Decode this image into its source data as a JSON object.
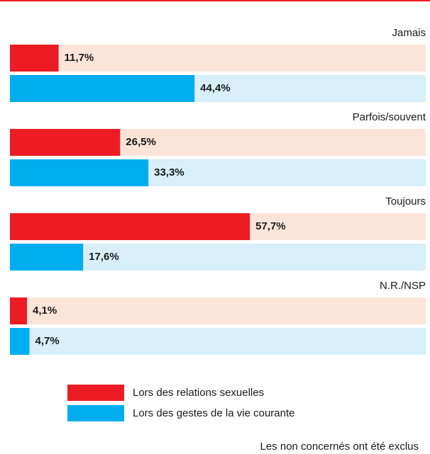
{
  "chart_data": {
    "type": "hbar",
    "categories": [
      "Jamais",
      "Parfois/souvent",
      "Toujours",
      "N.R./NSP"
    ],
    "series": [
      {
        "name": "Lors des relations sexuelles",
        "color": "#ed1c24",
        "values": [
          11.7,
          26.5,
          57.7,
          4.1
        ],
        "value_labels": [
          "11,7%",
          "26,5%",
          "57,7%",
          "4,1%"
        ]
      },
      {
        "name": "Lors des gestes de la vie courante",
        "color": "#00aeef",
        "values": [
          44.4,
          33.3,
          17.6,
          4.7
        ],
        "value_labels": [
          "44,4%",
          "33,3%",
          "17,6%",
          "4,7%"
        ]
      }
    ],
    "xlim": [
      0,
      100
    ],
    "note": "Les non concernés ont été exclus"
  }
}
